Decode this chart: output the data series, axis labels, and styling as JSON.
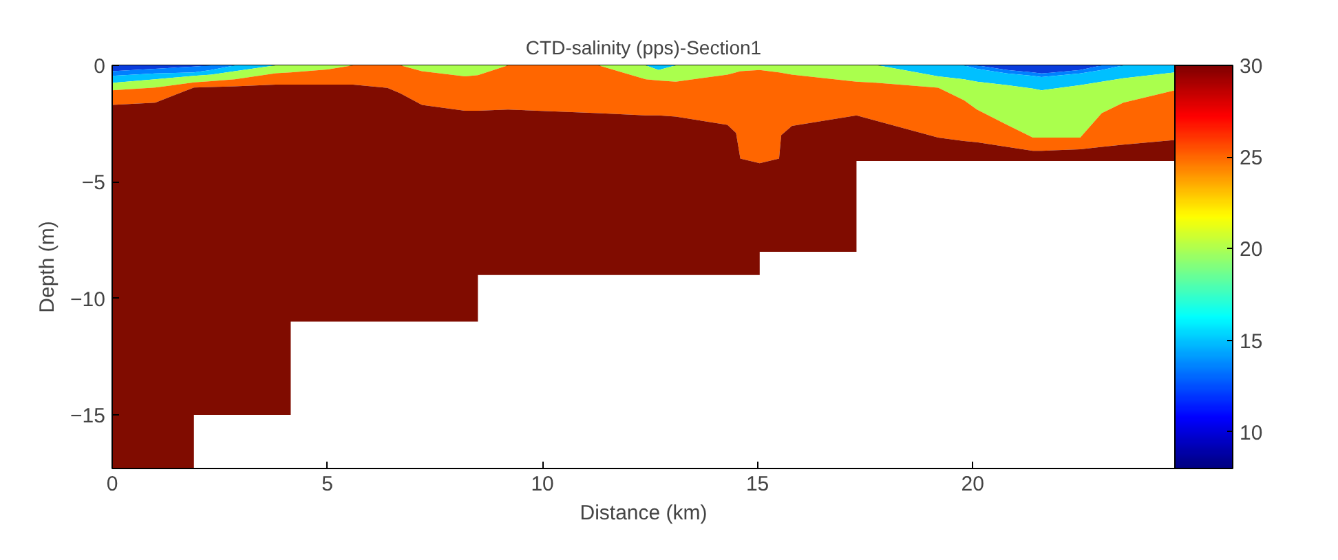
{
  "chart_data": {
    "type": "area",
    "stacked": true,
    "title": "CTD-salinity (pps)-Section1",
    "xlabel": "Distance (km)",
    "ylabel": "Depth (m)",
    "x": [
      0,
      1,
      1.9,
      1.9,
      2.3,
      2.85,
      3.8,
      4.15,
      4.15,
      5,
      5.6,
      6.4,
      6.7,
      7.2,
      8.2,
      8.5,
      8.5,
      9.2,
      11.3,
      12.4,
      12.7,
      13.1,
      14.3,
      14.5,
      14.6,
      15.05,
      15.05,
      15.5,
      15.55,
      15.8,
      17.3,
      17.3,
      17.8,
      19.2,
      19.8,
      20.1,
      20.8,
      21.4,
      21.6,
      22.5,
      23,
      23.5,
      24.7
    ],
    "series": [
      {
        "color": "#0a3cdc",
        "values": [
          -0.25,
          -0.15,
          -0.05,
          -0.05,
          0,
          0,
          0,
          0,
          0,
          0,
          0,
          0,
          0,
          0,
          0,
          0,
          0,
          0,
          0,
          0,
          0,
          0,
          0,
          0,
          0,
          0,
          0,
          0,
          0,
          0,
          0,
          0,
          0,
          0,
          0,
          0,
          -0.2,
          -0.3,
          -0.35,
          -0.2,
          0,
          0,
          0
        ]
      },
      {
        "color": "#0080ff",
        "values": [
          -0.2,
          -0.2,
          -0.25,
          -0.25,
          -0.2,
          0,
          0,
          0,
          0,
          0,
          0,
          0,
          0,
          0,
          0,
          0,
          0,
          0,
          0,
          0,
          0,
          0,
          0,
          0,
          0,
          0,
          0,
          0,
          0,
          0,
          0,
          0,
          0,
          0,
          0,
          -0.15,
          -0.15,
          -0.15,
          -0.15,
          -0.15,
          -0.2,
          0,
          0
        ]
      },
      {
        "color": "#00c0ff",
        "values": [
          -0.3,
          -0.25,
          -0.15,
          -0.15,
          -0.2,
          -0.25,
          0,
          0,
          0,
          0,
          0,
          0,
          0,
          0,
          0,
          0,
          0,
          0,
          0,
          0,
          -0.2,
          0,
          0,
          0,
          0,
          0,
          0,
          0,
          0,
          0,
          0,
          0,
          0,
          -0.47,
          -0.6,
          -0.55,
          -0.5,
          -0.55,
          -0.57,
          -0.5,
          -0.5,
          -0.55,
          -0.3
        ]
      },
      {
        "color": "#aaff4d",
        "values": [
          -0.32,
          -0.35,
          -0.28,
          -0.28,
          -0.28,
          -0.35,
          -0.34,
          -0.3,
          -0.3,
          -0.18,
          0,
          0,
          0,
          -0.25,
          -0.47,
          -0.42,
          -0.42,
          0,
          0,
          -0.6,
          -0.45,
          -0.7,
          -0.4,
          -0.3,
          -0.25,
          -0.2,
          -0.2,
          -0.3,
          -0.32,
          -0.4,
          -0.7,
          -0.7,
          -0.75,
          -0.49,
          -0.9,
          -1.2,
          -1.7,
          -2.1,
          -2.03,
          -2.25,
          -1.35,
          -1.05,
          -0.77
        ]
      },
      {
        "color": "#ff6600",
        "values": [
          -0.63,
          -0.65,
          -0.22,
          -0.22,
          -0.25,
          -0.3,
          -0.49,
          -0.53,
          -0.53,
          -0.65,
          -0.83,
          -0.97,
          -1.2,
          -1.45,
          -1.48,
          -1.53,
          -1.53,
          -1.9,
          -2.05,
          -1.55,
          -1.5,
          -1.5,
          -2.15,
          -2.6,
          -3.75,
          -4.0,
          -4.0,
          -3.7,
          -2.68,
          -2.2,
          -1.45,
          -1.45,
          -1.65,
          -2.14,
          -1.75,
          -1.4,
          -0.95,
          -0.57,
          -0.57,
          -0.5,
          -1.45,
          -1.8,
          -2.13
        ]
      },
      {
        "color": "#800c00",
        "values": [
          -15.6,
          -15.7,
          -16.35,
          -14.05,
          -14.07,
          -14.1,
          -14.17,
          -14.17,
          -10.17,
          -10.17,
          -10.17,
          -10.03,
          -9.8,
          -9.3,
          -9.05,
          -9.05,
          -7.05,
          -7.1,
          -6.95,
          -6.85,
          -6.85,
          -6.8,
          -6.45,
          -6.1,
          -5.0,
          -4.8,
          -3.8,
          -4.0,
          -5.0,
          -5.4,
          -5.85,
          -1.95,
          -1.7,
          -1.0,
          -0.85,
          -0.8,
          -0.6,
          -0.43,
          -0.43,
          -0.5,
          -0.6,
          -0.7,
          -0.9
        ]
      }
    ],
    "xlim": [
      0,
      24.7
    ],
    "xticks": [
      0,
      5,
      10,
      15,
      20
    ],
    "ylim": [
      -17.3,
      0
    ],
    "yticks": [
      -15,
      -10,
      -5,
      0
    ],
    "clim": [
      8,
      30
    ],
    "cticks": [
      10,
      15,
      20,
      25,
      30
    ],
    "grid": false
  }
}
